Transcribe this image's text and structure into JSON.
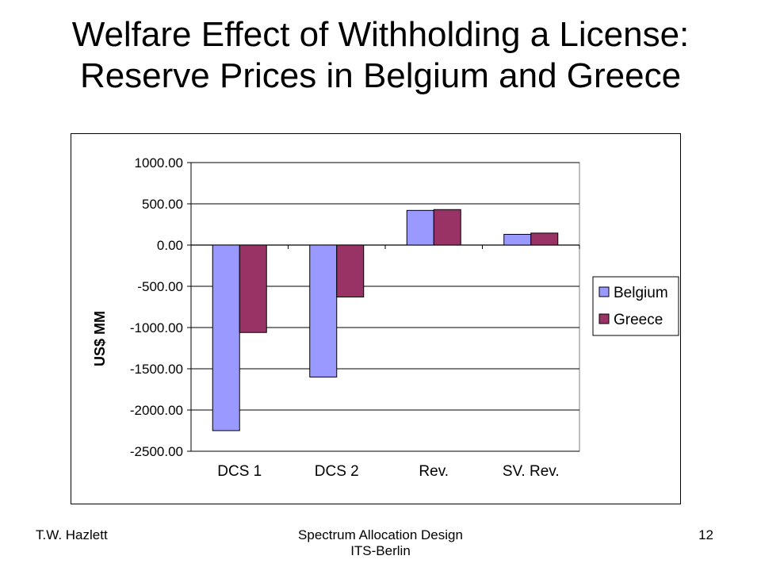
{
  "slide": {
    "title_line1": "Welfare Effect of Withholding a License:",
    "title_line2": "Reserve Prices in Belgium and Greece"
  },
  "footer": {
    "author": "T.W. Hazlett",
    "center_line1": "Spectrum Allocation Design",
    "center_line2": "ITS-Berlin",
    "page_number": "12"
  },
  "chart_data": {
    "type": "bar",
    "title": "",
    "xlabel": "",
    "ylabel": "US$ MM",
    "categories": [
      "DCS 1",
      "DCS 2",
      "Rev.",
      "SV. Rev."
    ],
    "series": [
      {
        "name": "Belgium",
        "color": "#9999ff",
        "values": [
          -2250,
          -1600,
          420,
          130
        ]
      },
      {
        "name": "Greece",
        "color": "#993366",
        "values": [
          -1060,
          -630,
          430,
          145
        ]
      }
    ],
    "ylim": [
      -2500,
      1000
    ],
    "yticks": [
      1000,
      500,
      0,
      -500,
      -1000,
      -1500,
      -2000,
      -2500
    ],
    "ytick_labels": [
      "1000.00",
      "500.00",
      "0.00",
      "-500.00",
      "-1000.00",
      "-1500.00",
      "-2000.00",
      "-2500.00"
    ],
    "grid": true,
    "legend_position": "right",
    "plot_background": "#ffffff"
  }
}
